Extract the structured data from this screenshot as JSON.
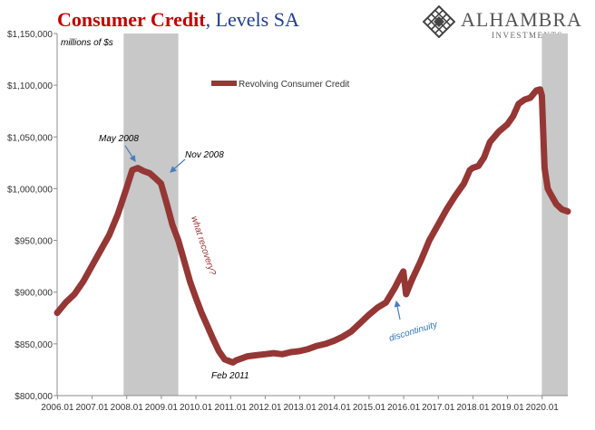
{
  "header": {
    "title_main": "Consumer Credit",
    "title_rest": ", Levels SA"
  },
  "logo": {
    "name": "ALHAMBRA",
    "sub": "INVESTMENTS",
    "icon": "diamond-lattice-icon"
  },
  "chart_data": {
    "type": "line",
    "ylabel": "millions of $s",
    "ylim": [
      800000,
      1150000
    ],
    "yticks": [
      800000,
      850000,
      900000,
      950000,
      1000000,
      1050000,
      1100000,
      1150000
    ],
    "ytick_labels": [
      "$800,000",
      "$850,000",
      "$900,000",
      "$950,000",
      "$1,000,000",
      "$1,050,000",
      "$1,100,000",
      "$1,150,000"
    ],
    "xlim": [
      2006.0,
      2020.75
    ],
    "xtick_labels": [
      "2006.01",
      "2007.01",
      "2008.01",
      "2009.01",
      "2010.01",
      "2011.01",
      "2012.01",
      "2013.01",
      "2014.01",
      "2015.01",
      "2016.01",
      "2017.01",
      "2018.01",
      "2019.01",
      "2020.01"
    ],
    "grid": false,
    "legend": "top-center",
    "series": [
      {
        "name": "Revolving Consumer Credit",
        "color": "#953735",
        "x": [
          2006.0,
          2006.25,
          2006.5,
          2006.75,
          2007.0,
          2007.25,
          2007.5,
          2007.75,
          2008.0,
          2008.17,
          2008.33,
          2008.5,
          2008.67,
          2008.84,
          2009.0,
          2009.17,
          2009.33,
          2009.5,
          2009.67,
          2009.84,
          2010.0,
          2010.17,
          2010.33,
          2010.5,
          2010.67,
          2010.84,
          2011.0,
          2011.08,
          2011.17,
          2011.33,
          2011.5,
          2011.75,
          2012.0,
          2012.25,
          2012.5,
          2012.75,
          2013.0,
          2013.25,
          2013.5,
          2013.75,
          2014.0,
          2014.25,
          2014.5,
          2014.75,
          2015.0,
          2015.25,
          2015.5,
          2015.75,
          2015.92,
          2016.0,
          2016.08,
          2016.25,
          2016.5,
          2016.75,
          2017.0,
          2017.25,
          2017.5,
          2017.75,
          2017.92,
          2018.0,
          2018.17,
          2018.33,
          2018.5,
          2018.75,
          2019.0,
          2019.17,
          2019.33,
          2019.5,
          2019.67,
          2019.84,
          2019.95,
          2020.0,
          2020.08,
          2020.17,
          2020.25,
          2020.42,
          2020.58,
          2020.75
        ],
        "values": [
          880000,
          890000,
          898000,
          910000,
          925000,
          940000,
          955000,
          975000,
          1000000,
          1018000,
          1020000,
          1017000,
          1015000,
          1010000,
          1005000,
          985000,
          965000,
          950000,
          930000,
          910000,
          895000,
          880000,
          868000,
          855000,
          843000,
          835000,
          833000,
          832000,
          834000,
          836000,
          838000,
          839000,
          840000,
          841000,
          840000,
          842000,
          843000,
          845000,
          848000,
          850000,
          853000,
          857000,
          862000,
          870000,
          878000,
          885000,
          890000,
          904000,
          915000,
          920000,
          898000,
          912000,
          930000,
          950000,
          965000,
          980000,
          993000,
          1005000,
          1018000,
          1020000,
          1022000,
          1030000,
          1045000,
          1055000,
          1062000,
          1070000,
          1082000,
          1086000,
          1088000,
          1095000,
          1096000,
          1090000,
          1020000,
          1000000,
          995000,
          985000,
          980000,
          978000
        ]
      }
    ],
    "recessions": [
      {
        "start": 2007.92,
        "end": 2009.5
      },
      {
        "start": 2020.0,
        "end": 2020.75
      }
    ],
    "annotations": [
      {
        "text": "May 2008",
        "x": 2008.33,
        "y": 1020000,
        "color": "#000000"
      },
      {
        "text": "Nov 2008",
        "x": 2008.84,
        "y": 1015000,
        "color": "#000000"
      },
      {
        "text": "what recovery?",
        "color": "#953735"
      },
      {
        "text": "Feb 2011",
        "x": 2011.08,
        "y": 832000,
        "color": "#000000"
      },
      {
        "text": "discontinuity",
        "x": 2016.08,
        "y": 898000,
        "color": "#2e75b6"
      }
    ]
  }
}
